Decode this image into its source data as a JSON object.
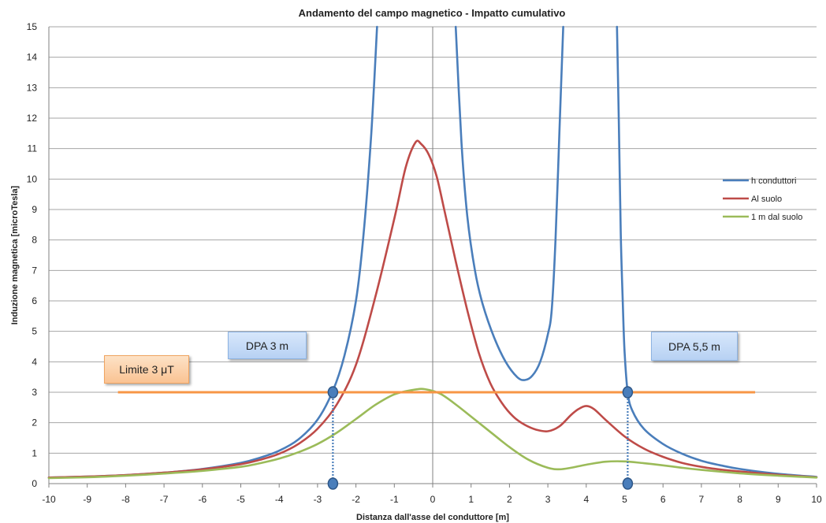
{
  "chart_data": {
    "type": "line",
    "title": "Andamento del campo magnetico  -  Impatto cumulativo",
    "xlabel": "Distanza dall'asse del conduttore [m]",
    "ylabel": "Induzione magnetica [microTesla]",
    "xlim": [
      -10,
      10
    ],
    "ylim": [
      0,
      15
    ],
    "xticks": [
      "-10",
      "-9",
      "-8",
      "-7",
      "-6",
      "-5",
      "-4",
      "-3",
      "-2",
      "-1",
      "0",
      "1",
      "2",
      "3",
      "4",
      "5",
      "6",
      "7",
      "8",
      "9",
      "10"
    ],
    "yticks": [
      "0",
      "1",
      "2",
      "3",
      "4",
      "5",
      "6",
      "7",
      "8",
      "9",
      "10",
      "11",
      "12",
      "13",
      "14",
      "15"
    ],
    "grid": "horizontal",
    "legend_position": "right",
    "series": [
      {
        "name": "h conduttori",
        "color": "#4a7ebb",
        "segments": [
          [
            [
              -10,
              0.2
            ],
            [
              -9,
              0.23
            ],
            [
              -8,
              0.28
            ],
            [
              -7,
              0.36
            ],
            [
              -6,
              0.48
            ],
            [
              -5,
              0.68
            ],
            [
              -4.5,
              0.85
            ],
            [
              -4,
              1.08
            ],
            [
              -3.5,
              1.45
            ],
            [
              -3,
              2.1
            ],
            [
              -2.6,
              3.05
            ],
            [
              -2.3,
              4.2
            ],
            [
              -2,
              6.0
            ],
            [
              -1.8,
              8.2
            ],
            [
              -1.6,
              11.5
            ],
            [
              -1.45,
              15
            ]
          ],
          [
            [
              0.6,
              15
            ],
            [
              0.75,
              11.2
            ],
            [
              0.9,
              8.8
            ],
            [
              1.1,
              7.0
            ],
            [
              1.3,
              5.9
            ],
            [
              1.6,
              4.8
            ],
            [
              1.9,
              4.0
            ],
            [
              2.2,
              3.5
            ],
            [
              2.4,
              3.4
            ],
            [
              2.6,
              3.55
            ],
            [
              2.8,
              4.0
            ],
            [
              3.0,
              4.9
            ],
            [
              3.1,
              5.7
            ],
            [
              3.2,
              8.0
            ],
            [
              3.3,
              11.5
            ],
            [
              3.4,
              15
            ]
          ],
          [
            [
              4.8,
              15
            ],
            [
              4.85,
              11.8
            ],
            [
              4.9,
              8.2
            ],
            [
              4.95,
              6.0
            ],
            [
              5.0,
              4.3
            ],
            [
              5.08,
              3.0
            ],
            [
              5.2,
              2.4
            ],
            [
              5.5,
              1.8
            ],
            [
              6,
              1.3
            ],
            [
              6.5,
              0.98
            ],
            [
              7,
              0.75
            ],
            [
              7.5,
              0.6
            ],
            [
              8,
              0.48
            ],
            [
              9,
              0.32
            ],
            [
              10,
              0.22
            ]
          ]
        ]
      },
      {
        "name": "Al suolo",
        "color": "#be4b48",
        "segments": [
          [
            [
              -10,
              0.2
            ],
            [
              -9,
              0.23
            ],
            [
              -8,
              0.28
            ],
            [
              -7,
              0.36
            ],
            [
              -6,
              0.47
            ],
            [
              -5,
              0.64
            ],
            [
              -4.5,
              0.78
            ],
            [
              -4,
              0.98
            ],
            [
              -3.5,
              1.3
            ],
            [
              -3,
              1.8
            ],
            [
              -2.5,
              2.6
            ],
            [
              -2,
              3.9
            ],
            [
              -1.5,
              6.1
            ],
            [
              -1,
              8.7
            ],
            [
              -0.7,
              10.4
            ],
            [
              -0.45,
              11.2
            ],
            [
              -0.3,
              11.15
            ],
            [
              -0.1,
              10.8
            ],
            [
              0.1,
              10.1
            ],
            [
              0.3,
              9.0
            ],
            [
              0.6,
              7.3
            ],
            [
              0.9,
              5.7
            ],
            [
              1.2,
              4.3
            ],
            [
              1.5,
              3.3
            ],
            [
              1.8,
              2.65
            ],
            [
              2.1,
              2.2
            ],
            [
              2.4,
              1.93
            ],
            [
              2.7,
              1.77
            ],
            [
              3,
              1.72
            ],
            [
              3.3,
              1.88
            ],
            [
              3.6,
              2.25
            ],
            [
              3.8,
              2.45
            ],
            [
              4,
              2.55
            ],
            [
              4.2,
              2.45
            ],
            [
              4.5,
              2.1
            ],
            [
              5,
              1.55
            ],
            [
              5.5,
              1.15
            ],
            [
              6,
              0.88
            ],
            [
              6.5,
              0.68
            ],
            [
              7,
              0.55
            ],
            [
              7.5,
              0.46
            ],
            [
              8,
              0.4
            ],
            [
              9,
              0.29
            ],
            [
              10,
              0.21
            ]
          ]
        ]
      },
      {
        "name": "1 m dal suolo",
        "color": "#9bbb59",
        "segments": [
          [
            [
              -10,
              0.18
            ],
            [
              -9,
              0.21
            ],
            [
              -8,
              0.26
            ],
            [
              -7,
              0.33
            ],
            [
              -6,
              0.42
            ],
            [
              -5,
              0.55
            ],
            [
              -4.5,
              0.67
            ],
            [
              -4,
              0.82
            ],
            [
              -3.5,
              1.03
            ],
            [
              -3,
              1.3
            ],
            [
              -2.5,
              1.67
            ],
            [
              -2,
              2.12
            ],
            [
              -1.5,
              2.58
            ],
            [
              -1,
              2.93
            ],
            [
              -0.5,
              3.08
            ],
            [
              -0.2,
              3.1
            ],
            [
              0.2,
              2.95
            ],
            [
              0.6,
              2.6
            ],
            [
              1,
              2.2
            ],
            [
              1.5,
              1.7
            ],
            [
              2,
              1.2
            ],
            [
              2.5,
              0.78
            ],
            [
              3,
              0.52
            ],
            [
              3.3,
              0.47
            ],
            [
              3.6,
              0.52
            ],
            [
              4,
              0.62
            ],
            [
              4.5,
              0.72
            ],
            [
              5,
              0.73
            ],
            [
              5.5,
              0.67
            ],
            [
              6,
              0.6
            ],
            [
              6.5,
              0.52
            ],
            [
              7,
              0.45
            ],
            [
              8,
              0.34
            ],
            [
              9,
              0.26
            ],
            [
              10,
              0.2
            ]
          ]
        ]
      }
    ],
    "limit_line": {
      "y": 3,
      "x_start": -8.2,
      "x_end": 8.4,
      "color": "#f79646"
    },
    "dpa_markers": [
      {
        "x": -2.6,
        "y": 3
      },
      {
        "x": 5.08,
        "y": 3
      }
    ],
    "annotations": {
      "dpa_left": "DPA 3  m",
      "dpa_right": "DPA 5,5  m",
      "limit": "Limite 3 μT"
    }
  }
}
